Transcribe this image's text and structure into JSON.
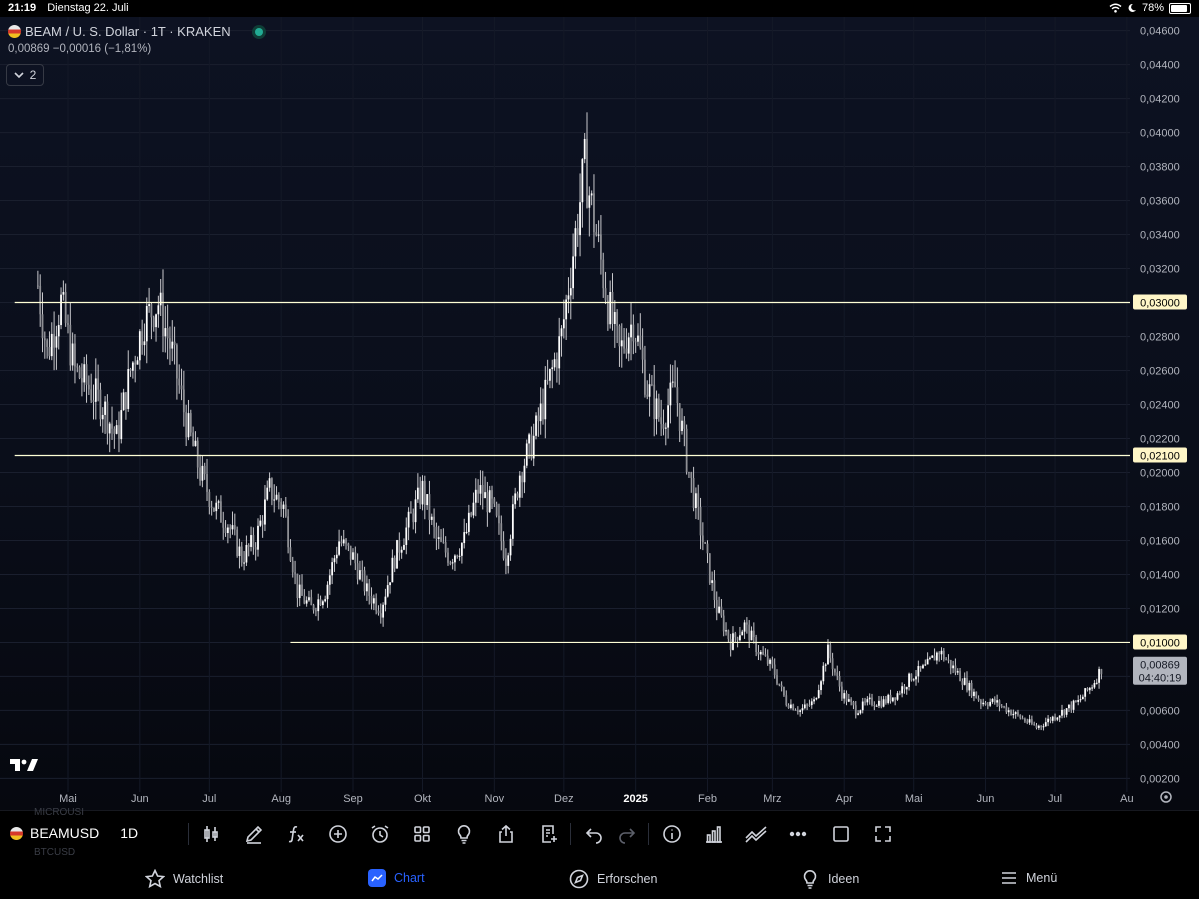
{
  "statusbar": {
    "time": "21:19",
    "date": "Dienstag 22. Juli",
    "battery": "78%",
    "battery_level": 0.78
  },
  "header": {
    "title": "BEAM / U. S. Dollar · 1T · KRAKEN",
    "quote": "0,00869  −0,00016 (−1,81%)",
    "indicator_count": "2"
  },
  "colors": {
    "line": "#ffffd6",
    "price_badge": "#b2b5be",
    "level_badge": "#fff6c7",
    "accent": "#2962ff",
    "live": "#22ab94"
  },
  "chart_data": {
    "type": "candlestick",
    "title": "BEAM / U. S. Dollar · 1T · KRAKEN",
    "ylim": [
      0.0012,
      0.0468
    ],
    "y_ticks": [
      "0,04600",
      "0,04400",
      "0,04200",
      "0,04000",
      "0,03800",
      "0,03600",
      "0,03400",
      "0,03200",
      "0,02800",
      "0,02600",
      "0,02400",
      "0,02200",
      "0,02000",
      "0,01800",
      "0,01600",
      "0,01400",
      "0,01200",
      "0,00600",
      "0,00400",
      "0,00200"
    ],
    "y_tick_values": [
      0.046,
      0.044,
      0.042,
      0.04,
      0.038,
      0.036,
      0.034,
      0.032,
      0.028,
      0.026,
      0.024,
      0.022,
      0.02,
      0.018,
      0.016,
      0.014,
      0.012,
      0.006,
      0.004,
      0.002
    ],
    "x_ticks": [
      "Mai",
      "Jun",
      "Jul",
      "Aug",
      "Sep",
      "Okt",
      "Nov",
      "Dez",
      "2025",
      "Feb",
      "Mrz",
      "Apr",
      "Mai",
      "Jun",
      "Jul",
      "Au"
    ],
    "x_tick_dates": [
      "2024-05-01",
      "2024-06-01",
      "2024-07-01",
      "2024-08-01",
      "2024-09-01",
      "2024-10-01",
      "2024-11-01",
      "2024-12-01",
      "2025-01-01",
      "2025-02-01",
      "2025-03-01",
      "2025-04-01",
      "2025-05-01",
      "2025-06-01",
      "2025-07-01",
      "2025-08-01"
    ],
    "horizontal_lines": [
      {
        "value": 0.03,
        "label": "0,03000",
        "from": "2024-04-08"
      },
      {
        "value": 0.021,
        "label": "0,02100",
        "from": "2024-04-08"
      },
      {
        "value": 0.01,
        "label": "0,01000",
        "from": "2024-08-05"
      }
    ],
    "last_price": {
      "value": 0.00869,
      "label": "0,00869",
      "countdown": "04:40:19"
    },
    "series": [
      [
        "2024-04-18",
        0.031
      ],
      [
        "2024-04-22",
        0.027
      ],
      [
        "2024-04-28",
        0.03
      ],
      [
        "2024-05-04",
        0.026
      ],
      [
        "2024-05-10",
        0.025
      ],
      [
        "2024-05-16",
        0.024
      ],
      [
        "2024-05-22",
        0.022
      ],
      [
        "2024-05-28",
        0.026
      ],
      [
        "2024-06-03",
        0.029
      ],
      [
        "2024-06-09",
        0.03
      ],
      [
        "2024-06-15",
        0.027
      ],
      [
        "2024-06-21",
        0.023
      ],
      [
        "2024-06-27",
        0.02
      ],
      [
        "2024-07-03",
        0.018
      ],
      [
        "2024-07-09",
        0.017
      ],
      [
        "2024-07-15",
        0.015
      ],
      [
        "2024-07-21",
        0.016
      ],
      [
        "2024-07-27",
        0.019
      ],
      [
        "2024-08-02",
        0.018
      ],
      [
        "2024-08-08",
        0.013
      ],
      [
        "2024-08-14",
        0.012
      ],
      [
        "2024-08-20",
        0.013
      ],
      [
        "2024-08-26",
        0.016
      ],
      [
        "2024-09-01",
        0.015
      ],
      [
        "2024-09-07",
        0.013
      ],
      [
        "2024-09-13",
        0.012
      ],
      [
        "2024-09-19",
        0.015
      ],
      [
        "2024-09-25",
        0.017
      ],
      [
        "2024-10-01",
        0.019
      ],
      [
        "2024-10-07",
        0.016
      ],
      [
        "2024-10-13",
        0.015
      ],
      [
        "2024-10-19",
        0.016
      ],
      [
        "2024-10-25",
        0.019
      ],
      [
        "2024-10-31",
        0.018
      ],
      [
        "2024-11-06",
        0.015
      ],
      [
        "2024-11-12",
        0.02
      ],
      [
        "2024-11-18",
        0.022
      ],
      [
        "2024-11-24",
        0.025
      ],
      [
        "2024-11-30",
        0.028
      ],
      [
        "2024-12-05",
        0.033
      ],
      [
        "2024-12-10",
        0.038
      ],
      [
        "2024-12-15",
        0.034
      ],
      [
        "2024-12-20",
        0.03
      ],
      [
        "2024-12-25",
        0.027
      ],
      [
        "2024-12-31",
        0.029
      ],
      [
        "2025-01-06",
        0.025
      ],
      [
        "2025-01-12",
        0.023
      ],
      [
        "2025-01-18",
        0.025
      ],
      [
        "2025-01-24",
        0.02
      ],
      [
        "2025-01-30",
        0.016
      ],
      [
        "2025-02-05",
        0.012
      ],
      [
        "2025-02-11",
        0.01
      ],
      [
        "2025-02-17",
        0.011
      ],
      [
        "2025-02-23",
        0.0095
      ],
      [
        "2025-03-01",
        0.0085
      ],
      [
        "2025-03-07",
        0.0065
      ],
      [
        "2025-03-13",
        0.006
      ],
      [
        "2025-03-19",
        0.0065
      ],
      [
        "2025-03-25",
        0.0095
      ],
      [
        "2025-03-31",
        0.007
      ],
      [
        "2025-04-06",
        0.006
      ],
      [
        "2025-04-12",
        0.0065
      ],
      [
        "2025-04-18",
        0.0065
      ],
      [
        "2025-04-24",
        0.007
      ],
      [
        "2025-04-30",
        0.008
      ],
      [
        "2025-05-06",
        0.0085
      ],
      [
        "2025-05-12",
        0.0095
      ],
      [
        "2025-05-18",
        0.0085
      ],
      [
        "2025-05-24",
        0.0075
      ],
      [
        "2025-05-30",
        0.0065
      ],
      [
        "2025-06-05",
        0.0065
      ],
      [
        "2025-06-11",
        0.006
      ],
      [
        "2025-06-17",
        0.0055
      ],
      [
        "2025-06-23",
        0.005
      ],
      [
        "2025-06-29",
        0.0055
      ],
      [
        "2025-07-05",
        0.006
      ],
      [
        "2025-07-11",
        0.0065
      ],
      [
        "2025-07-17",
        0.0075
      ],
      [
        "2025-07-22",
        0.0087
      ]
    ]
  },
  "toolbar": {
    "symbol": "BEAMUSD",
    "interval": "1D",
    "ghost_top": "MICROUSI",
    "ghost_bottom": "BTCUSD",
    "tools": [
      "candle-type-icon",
      "pencil-icon",
      "fx-icon",
      "plus-circle-icon",
      "alarm-icon",
      "grid-icon",
      "lightbulb-icon",
      "share-icon",
      "watchlist-add-icon",
      "undo-icon",
      "redo-icon",
      "info-icon",
      "bar-chart-icon",
      "compare-icon",
      "more-icon",
      "square-icon",
      "fullscreen-icon"
    ]
  },
  "nav": {
    "watchlist": "Watchlist",
    "chart": "Chart",
    "explore": "Erforschen",
    "ideas": "Ideen",
    "menu": "Menü"
  }
}
